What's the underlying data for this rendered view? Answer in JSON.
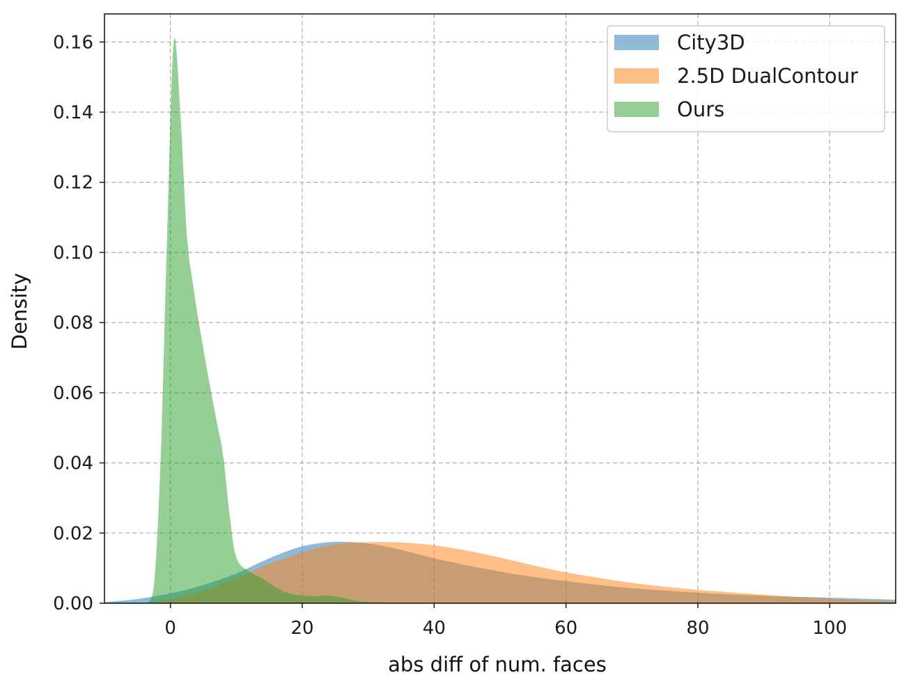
{
  "chart_data": {
    "type": "area",
    "xlabel": "abs diff of num. faces",
    "ylabel": "Density",
    "xlim": [
      -10,
      110
    ],
    "ylim": [
      0,
      0.168
    ],
    "xticks": [
      0,
      20,
      40,
      60,
      80,
      100
    ],
    "yticks": [
      0.0,
      0.02,
      0.04,
      0.06,
      0.08,
      0.1,
      0.12,
      0.14,
      0.16
    ],
    "xtick_labels": [
      "0",
      "20",
      "40",
      "60",
      "80",
      "100"
    ],
    "ytick_labels": [
      "0.00",
      "0.02",
      "0.04",
      "0.06",
      "0.08",
      "0.10",
      "0.12",
      "0.14",
      "0.16"
    ],
    "grid": true,
    "legend_position": "top-right",
    "series": [
      {
        "name": "City3D",
        "color": "#1f77b4",
        "opacity": 0.5,
        "points": [
          [
            -10,
            0.0003
          ],
          [
            -5,
            0.0012
          ],
          [
            0,
            0.0028
          ],
          [
            5,
            0.0052
          ],
          [
            10,
            0.0085
          ],
          [
            15,
            0.0128
          ],
          [
            20,
            0.0162
          ],
          [
            25,
            0.0175
          ],
          [
            30,
            0.017
          ],
          [
            35,
            0.0152
          ],
          [
            40,
            0.0128
          ],
          [
            45,
            0.0108
          ],
          [
            50,
            0.009
          ],
          [
            55,
            0.0075
          ],
          [
            60,
            0.0063
          ],
          [
            65,
            0.0052
          ],
          [
            70,
            0.0043
          ],
          [
            75,
            0.0036
          ],
          [
            80,
            0.003
          ],
          [
            85,
            0.0025
          ],
          [
            90,
            0.0021
          ],
          [
            95,
            0.0018
          ],
          [
            100,
            0.0016
          ],
          [
            105,
            0.0013
          ],
          [
            110,
            0.001
          ]
        ]
      },
      {
        "name": "2.5D DualContour",
        "color": "#ff7f0e",
        "opacity": 0.5,
        "points": [
          [
            -4,
            0.0
          ],
          [
            0,
            0.0012
          ],
          [
            5,
            0.0036
          ],
          [
            10,
            0.0072
          ],
          [
            15,
            0.0112
          ],
          [
            20,
            0.0145
          ],
          [
            25,
            0.0168
          ],
          [
            30,
            0.0174
          ],
          [
            35,
            0.0173
          ],
          [
            40,
            0.0165
          ],
          [
            45,
            0.015
          ],
          [
            50,
            0.013
          ],
          [
            55,
            0.0108
          ],
          [
            60,
            0.0088
          ],
          [
            65,
            0.0072
          ],
          [
            70,
            0.0058
          ],
          [
            75,
            0.0047
          ],
          [
            80,
            0.0038
          ],
          [
            85,
            0.0031
          ],
          [
            90,
            0.0024
          ],
          [
            95,
            0.0018
          ],
          [
            100,
            0.0013
          ],
          [
            105,
            0.0009
          ],
          [
            110,
            0.0006
          ]
        ]
      },
      {
        "name": "Ours",
        "color": "#2ca02c",
        "opacity": 0.5,
        "points": [
          [
            -3.5,
            0.0
          ],
          [
            -2.5,
            0.005
          ],
          [
            -1.5,
            0.04
          ],
          [
            -0.5,
            0.105
          ],
          [
            0.5,
            0.16
          ],
          [
            1.5,
            0.14
          ],
          [
            2.5,
            0.105
          ],
          [
            3.5,
            0.09
          ],
          [
            4.5,
            0.078
          ],
          [
            6,
            0.062
          ],
          [
            7,
            0.052
          ],
          [
            8,
            0.042
          ],
          [
            9,
            0.025
          ],
          [
            10,
            0.013
          ],
          [
            12,
            0.009
          ],
          [
            14,
            0.007
          ],
          [
            16,
            0.0045
          ],
          [
            18,
            0.0028
          ],
          [
            20,
            0.0022
          ],
          [
            22,
            0.002
          ],
          [
            24,
            0.0022
          ],
          [
            26,
            0.0016
          ],
          [
            28,
            0.0008
          ],
          [
            30,
            0.0003
          ],
          [
            33,
            0.0
          ]
        ]
      }
    ]
  }
}
